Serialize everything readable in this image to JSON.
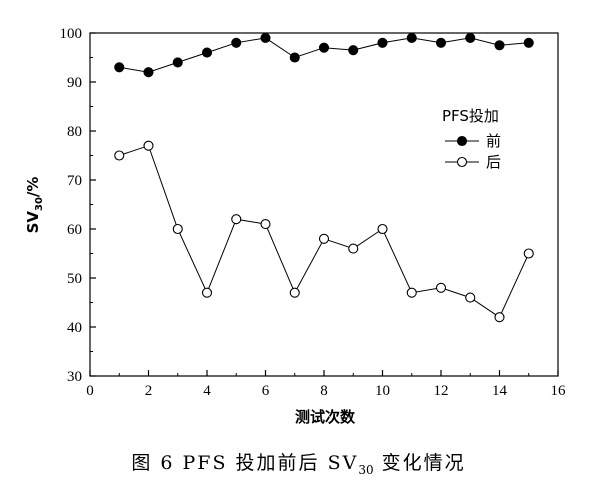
{
  "chart_data": {
    "type": "line",
    "xlabel": "测试次数",
    "ylabel_main": "SV",
    "ylabel_sub": "30",
    "ylabel_tail": "/%",
    "xlim": [
      0,
      16
    ],
    "ylim": [
      30,
      100
    ],
    "xticks": [
      0,
      2,
      4,
      6,
      8,
      10,
      12,
      14,
      16
    ],
    "yticks": [
      30,
      40,
      50,
      60,
      70,
      80,
      90,
      100
    ],
    "x": [
      1,
      2,
      3,
      4,
      5,
      6,
      7,
      8,
      9,
      10,
      11,
      12,
      13,
      14,
      15
    ],
    "legend_title": "PFS投加",
    "series": [
      {
        "name": "前",
        "marker": "filled-circle",
        "values": [
          93,
          92,
          94,
          96,
          98,
          99,
          95,
          97,
          96.5,
          98,
          99,
          98,
          99,
          97.5,
          98
        ]
      },
      {
        "name": "后",
        "marker": "open-circle",
        "values": [
          75,
          77,
          60,
          47,
          62,
          61,
          47,
          58,
          56,
          60,
          47,
          48,
          46,
          42,
          55
        ]
      }
    ],
    "grid": false
  },
  "caption": {
    "prefix": "图 6 PFS 投加前后 SV",
    "sub": "30",
    "suffix": " 变化情况"
  }
}
